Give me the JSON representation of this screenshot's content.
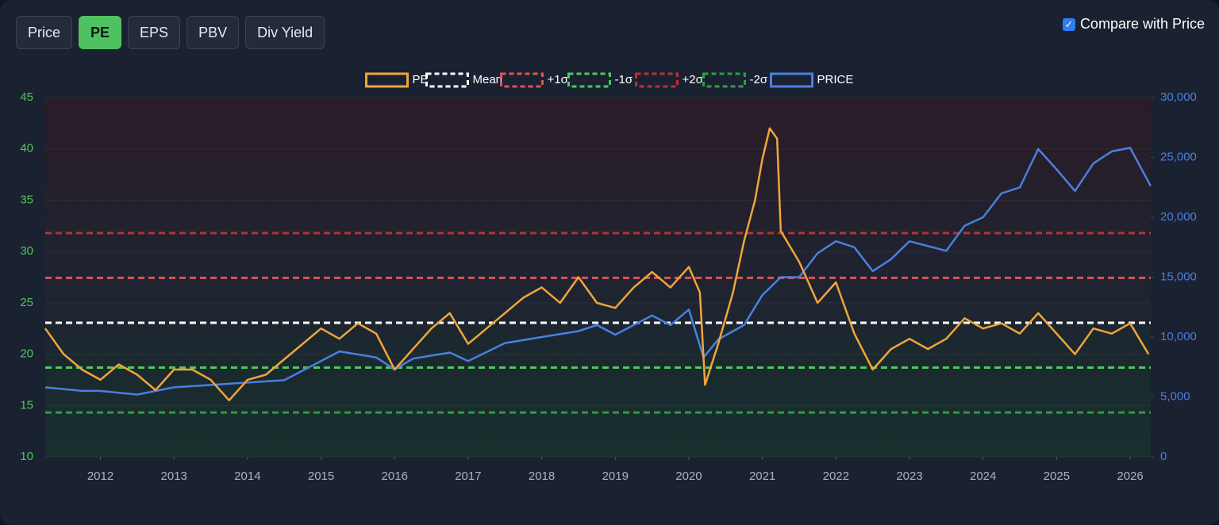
{
  "toolbar": {
    "buttons": [
      {
        "label": "Price",
        "active": false
      },
      {
        "label": "PE",
        "active": true
      },
      {
        "label": "EPS",
        "active": false
      },
      {
        "label": "PBV",
        "active": false
      },
      {
        "label": "Div Yield",
        "active": false
      }
    ],
    "compare": {
      "label": "Compare with Price",
      "checked": true
    }
  },
  "chart_data": {
    "type": "line",
    "xlim": [
      2011.25,
      2026.28
    ],
    "xticks": [
      2012,
      2013,
      2014,
      2015,
      2016,
      2017,
      2018,
      2019,
      2020,
      2021,
      2022,
      2023,
      2024,
      2025,
      2026
    ],
    "ylim": [
      10,
      45
    ],
    "yticks": [
      10,
      15,
      20,
      25,
      30,
      35,
      40,
      45
    ],
    "y2lim": [
      0,
      30000
    ],
    "y2ticks": [
      0,
      {
        "value": 5000,
        "label": "5,000"
      },
      {
        "value": 10000,
        "label": "10,000"
      },
      {
        "value": 15000,
        "label": "15,000"
      },
      {
        "value": 20000,
        "label": "20,000"
      },
      {
        "value": 25000,
        "label": "25,000"
      },
      {
        "value": 30000,
        "label": "30,000"
      }
    ],
    "series": [
      {
        "name": "PE",
        "color": "#f0a53a",
        "x": [
          2011.25,
          2011.5,
          2011.75,
          2012.0,
          2012.25,
          2012.5,
          2012.75,
          2013.0,
          2013.25,
          2013.5,
          2013.75,
          2014.0,
          2014.25,
          2014.5,
          2014.75,
          2015.0,
          2015.25,
          2015.5,
          2015.75,
          2016.0,
          2016.25,
          2016.5,
          2016.75,
          2017.0,
          2017.25,
          2017.5,
          2017.75,
          2018.0,
          2018.25,
          2018.5,
          2018.75,
          2019.0,
          2019.25,
          2019.5,
          2019.75,
          2020.0,
          2020.15,
          2020.22,
          2020.4,
          2020.6,
          2020.75,
          2020.9,
          2021.0,
          2021.1,
          2021.2,
          2021.25,
          2021.5,
          2021.75,
          2022.0,
          2022.25,
          2022.5,
          2022.75,
          2023.0,
          2023.25,
          2023.5,
          2023.75,
          2024.0,
          2024.25,
          2024.5,
          2024.75,
          2025.0,
          2025.25,
          2025.5,
          2025.75,
          2026.0,
          2026.25
        ],
        "values": [
          22.5,
          20,
          18.5,
          17.5,
          19,
          18,
          16.5,
          18.5,
          18.5,
          17.5,
          15.5,
          17.5,
          18,
          19.5,
          21,
          22.5,
          21.5,
          23,
          22,
          18.5,
          20.5,
          22.5,
          24,
          21,
          22.5,
          24,
          25.5,
          26.5,
          25,
          27.5,
          25,
          24.5,
          26.5,
          28,
          26.5,
          28.5,
          26,
          17,
          21,
          26,
          31,
          35,
          39,
          42,
          41,
          32,
          29,
          25,
          27,
          22,
          18.5,
          20.5,
          21.5,
          20.5,
          21.5,
          23.5,
          22.5,
          23,
          22,
          24,
          22,
          20,
          22.5,
          22,
          23,
          20
        ]
      },
      {
        "name": "Mean",
        "color": "#ffffff",
        "value": 23.06
      },
      {
        "name": "+1σ",
        "color": "#e05252",
        "value": 27.43
      },
      {
        "name": "-1σ",
        "color": "#4cc95a",
        "value": 18.69
      },
      {
        "name": "+2σ",
        "color": "#b83232",
        "value": 31.8
      },
      {
        "name": "-2σ",
        "color": "#2e9e40",
        "value": 14.32
      },
      {
        "name": "PRICE",
        "color": "#4a7fe0",
        "axis": "y2",
        "x": [
          2011.25,
          2011.75,
          2012.0,
          2012.5,
          2013.0,
          2013.5,
          2014.0,
          2014.5,
          2015.0,
          2015.25,
          2015.75,
          2016.0,
          2016.25,
          2016.75,
          2017.0,
          2017.5,
          2018.0,
          2018.5,
          2018.75,
          2019.0,
          2019.5,
          2019.75,
          2020.0,
          2020.2,
          2020.4,
          2020.75,
          2021.0,
          2021.25,
          2021.5,
          2021.75,
          2022.0,
          2022.25,
          2022.5,
          2022.75,
          2023.0,
          2023.5,
          2023.75,
          2024.0,
          2024.25,
          2024.5,
          2024.75,
          2025.0,
          2025.25,
          2025.5,
          2025.75,
          2026.0,
          2026.28
        ],
        "values": [
          5800,
          5500,
          5500,
          5200,
          5800,
          6000,
          6200,
          6400,
          8000,
          8800,
          8300,
          7300,
          8200,
          8700,
          8000,
          9500,
          10000,
          10500,
          11000,
          10200,
          11800,
          11000,
          12300,
          8300,
          9800,
          11000,
          13500,
          15000,
          15000,
          17000,
          18000,
          17500,
          15500,
          16500,
          18000,
          17200,
          19300,
          20000,
          22000,
          22500,
          25700,
          24000,
          22200,
          24500,
          25500,
          25800,
          22600
        ]
      }
    ]
  }
}
